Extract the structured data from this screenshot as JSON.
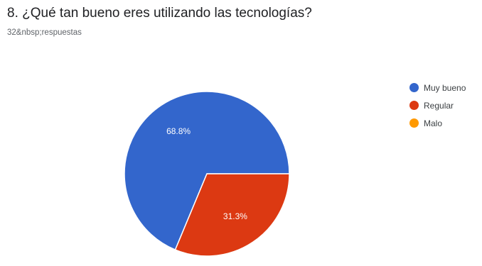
{
  "question": {
    "title": "8. ¿Qué tan bueno eres utilizando las tecnologías?",
    "responses_text": "32&nbsp;respuestas"
  },
  "chart_data": {
    "type": "pie",
    "categories": [
      "Muy bueno",
      "Regular",
      "Malo"
    ],
    "values": [
      68.8,
      31.3,
      0
    ],
    "data_labels": [
      "68.8%",
      "31.3%",
      ""
    ],
    "colors": [
      "#3366cc",
      "#dc3912",
      "#ff9900"
    ],
    "legend_position": "right",
    "start_angle_deg": 0,
    "direction": "counter-clockwise"
  }
}
